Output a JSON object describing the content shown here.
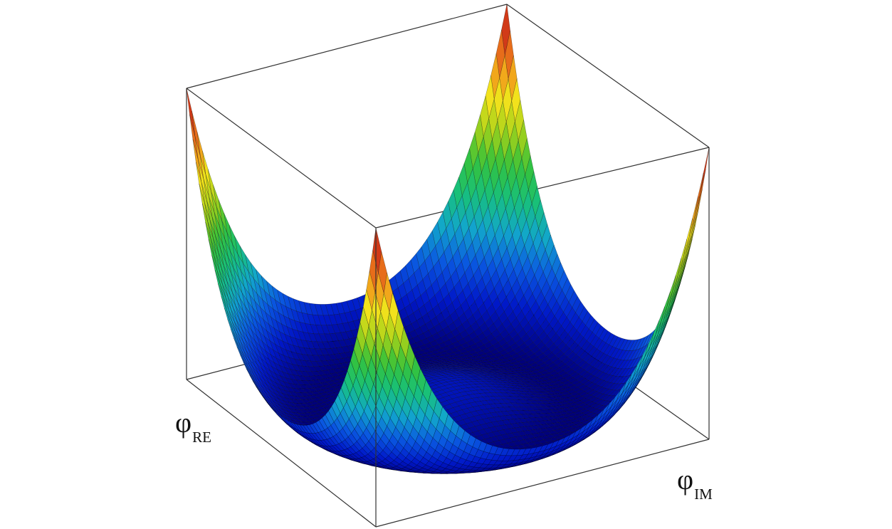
{
  "figure": {
    "description_type": "3d-surface-mexican-hat-potential",
    "colormap": [
      "#00007a",
      "#0018c8",
      "#0a58e0",
      "#12a6cc",
      "#18c07a",
      "#36c23a",
      "#a8d21a",
      "#f2e21c",
      "#f08a1a",
      "#d8401a",
      "#b01e10"
    ],
    "box_color": "#222222"
  },
  "axes": {
    "x": {
      "symbol": "φ",
      "subscript": "RE"
    },
    "y": {
      "symbol": "φ",
      "subscript": "IM"
    }
  }
}
